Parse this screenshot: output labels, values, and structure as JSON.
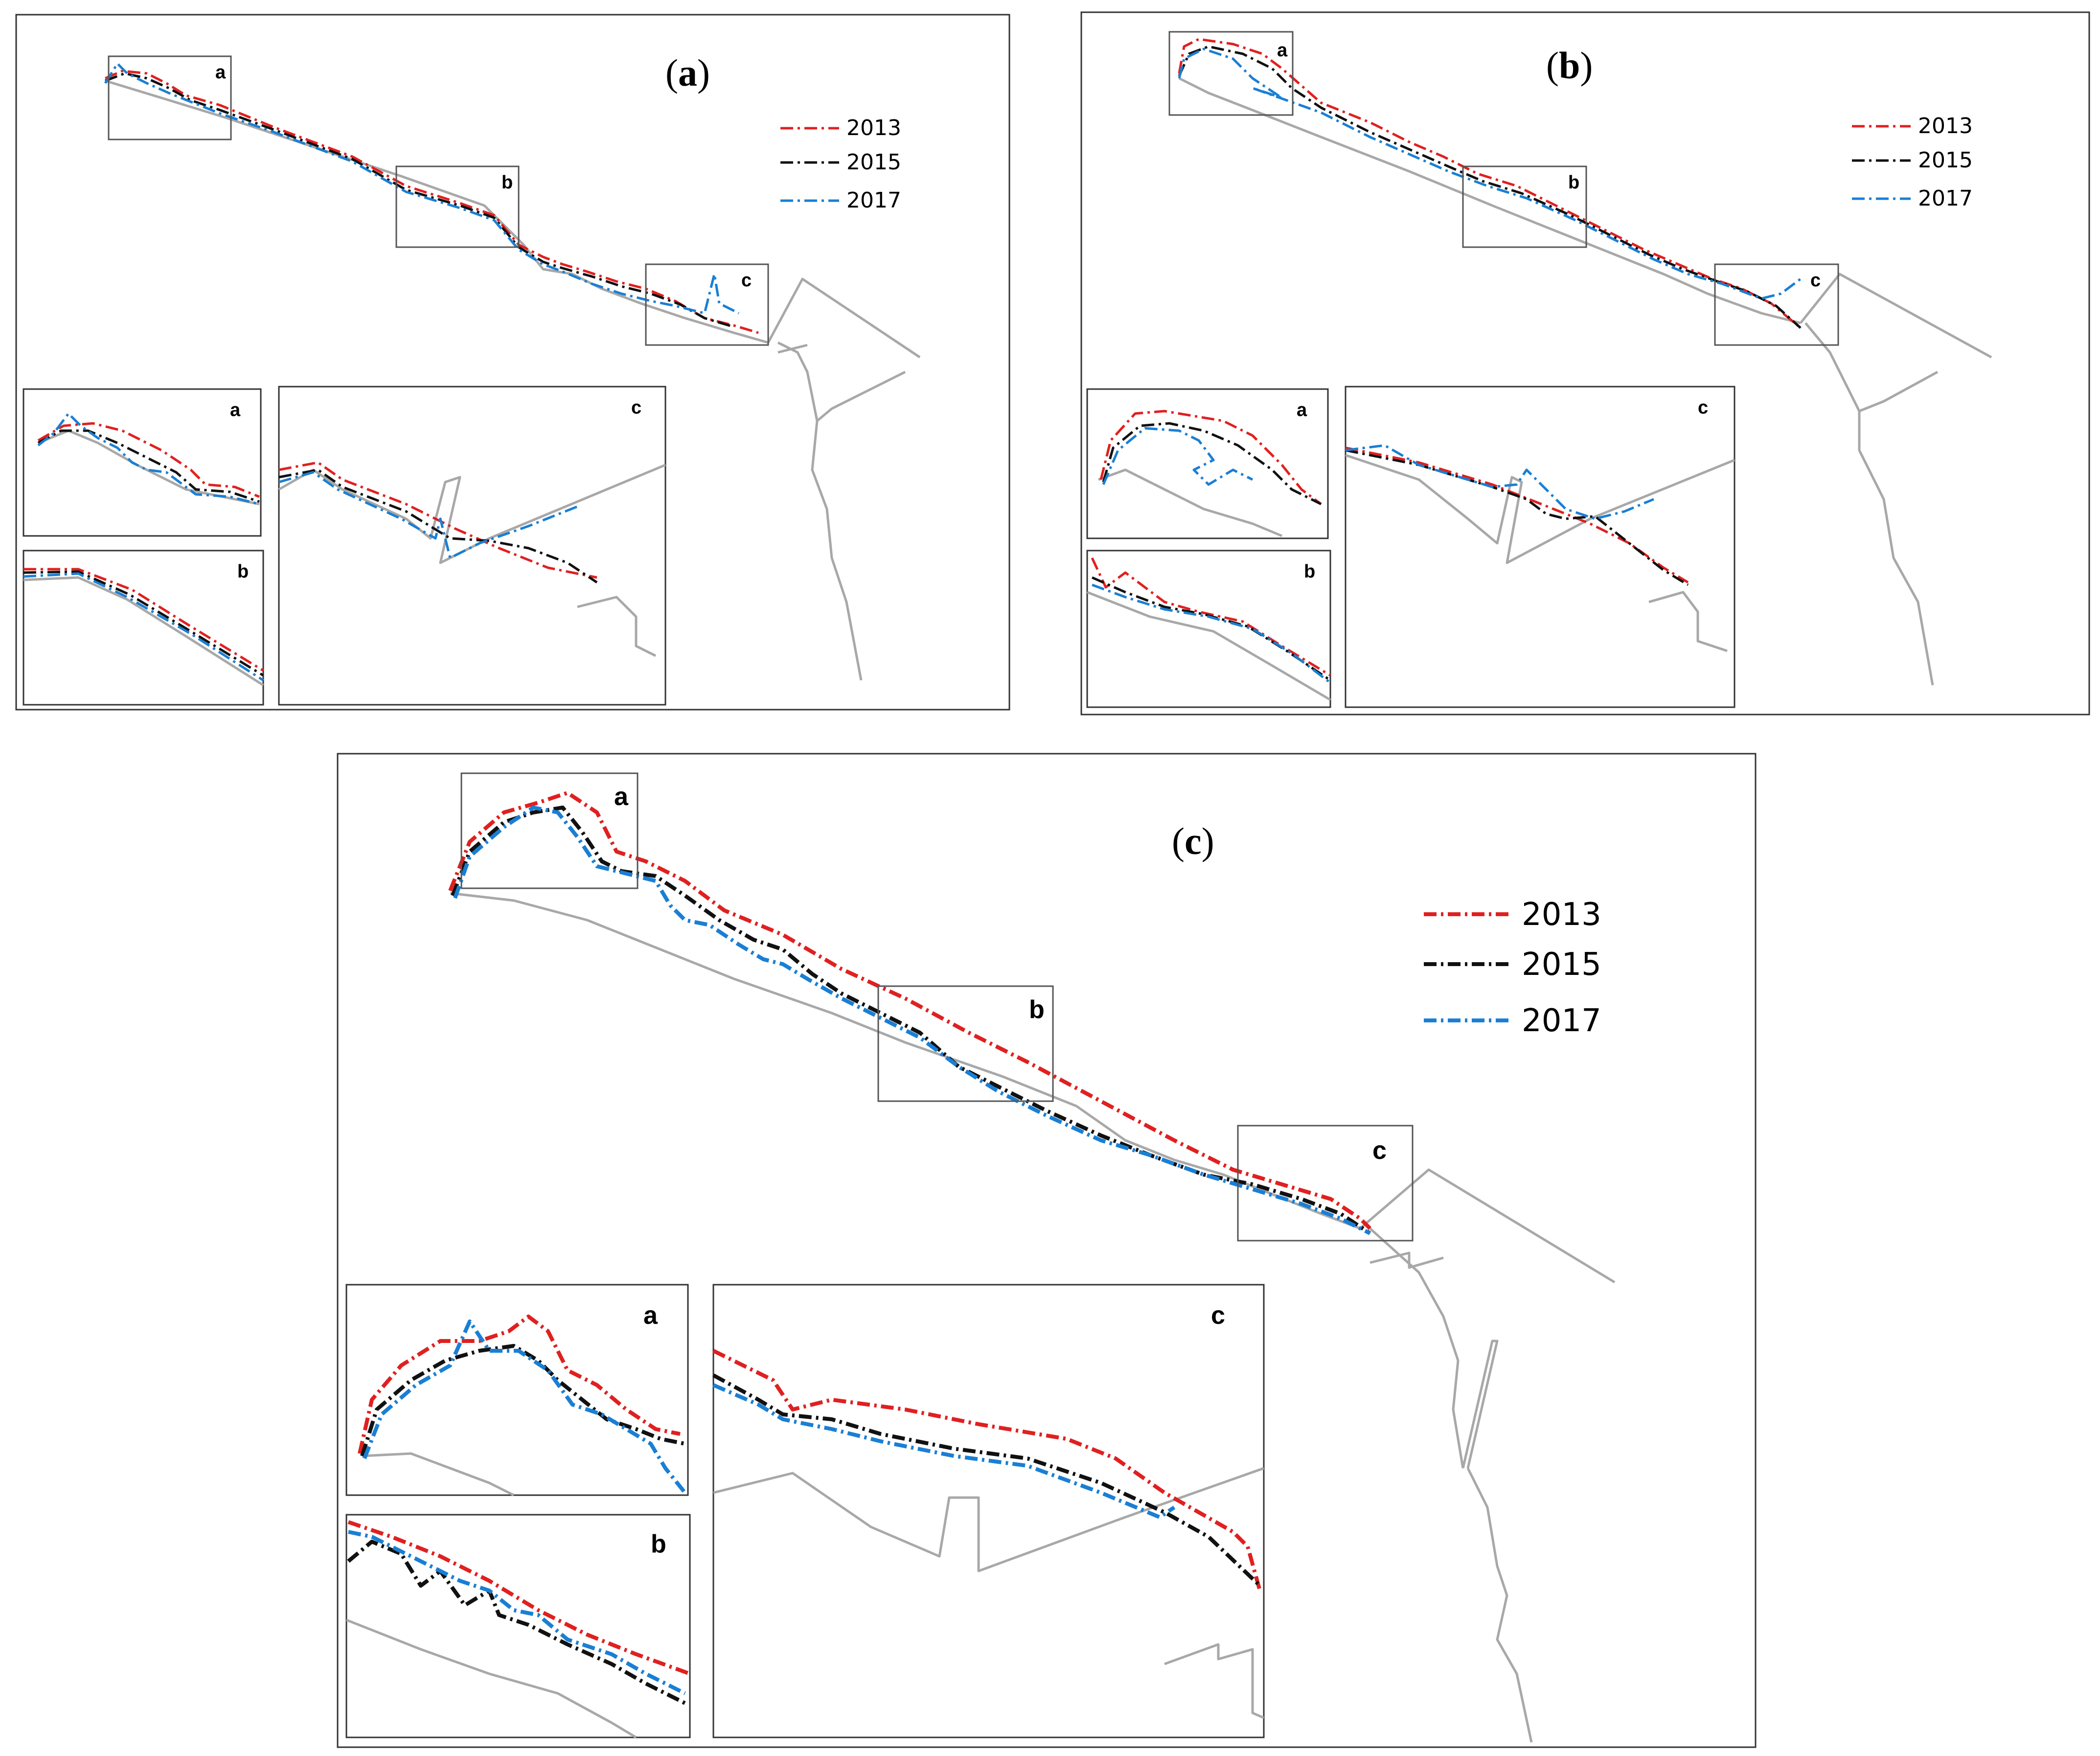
{
  "figure": {
    "panels": [
      {
        "id": "a",
        "label_open": "(",
        "label_letter": "a",
        "label_close": ")",
        "legend": [
          {
            "year": "2013",
            "color": "#e02020"
          },
          {
            "year": "2015",
            "color": "#111111"
          },
          {
            "year": "2017",
            "color": "#1a7fd4"
          }
        ],
        "zoom_boxes": [
          "a",
          "b",
          "c"
        ],
        "insets": [
          "a",
          "b",
          "c"
        ]
      },
      {
        "id": "b",
        "label_open": "(",
        "label_letter": "b",
        "label_close": ")",
        "legend": [
          {
            "year": "2013",
            "color": "#e02020"
          },
          {
            "year": "2015",
            "color": "#111111"
          },
          {
            "year": "2017",
            "color": "#1a7fd4"
          }
        ],
        "zoom_boxes": [
          "a",
          "b",
          "c"
        ],
        "insets": [
          "a",
          "b",
          "c"
        ]
      },
      {
        "id": "c",
        "label_open": "(",
        "label_letter": "c",
        "label_close": ")",
        "legend": [
          {
            "year": "2013",
            "color": "#e02020"
          },
          {
            "year": "2015",
            "color": "#111111"
          },
          {
            "year": "2017",
            "color": "#1a7fd4"
          }
        ],
        "zoom_boxes": [
          "a",
          "b",
          "c"
        ],
        "insets": [
          "a",
          "b",
          "c"
        ]
      }
    ],
    "colors": {
      "frame": "#333333",
      "coast": "#a8a8a8",
      "line_2013": "#e02020",
      "line_2015": "#111111",
      "line_2017": "#1a7fd4"
    }
  }
}
